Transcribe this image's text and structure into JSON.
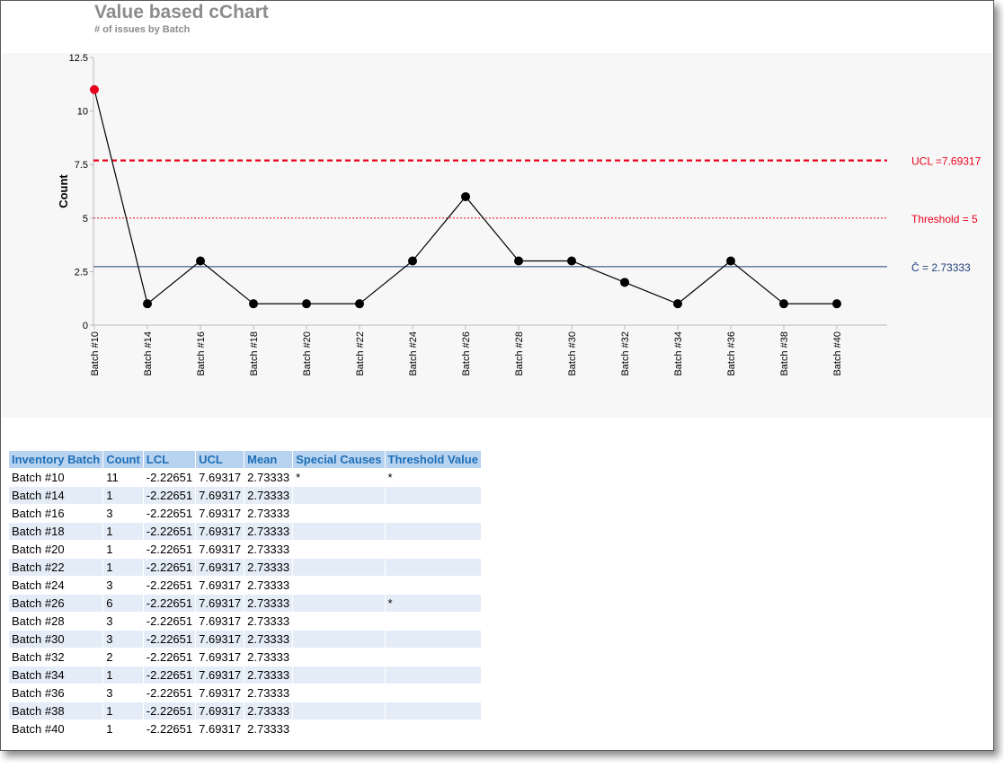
{
  "header": {
    "title": "Value based cChart",
    "subtitle": "# of issues by Batch"
  },
  "chart_data": {
    "type": "line",
    "ylabel": "Count",
    "ylim": [
      0,
      12.5
    ],
    "yticks": [
      "0",
      "2.5",
      "5",
      "7.5",
      "10",
      "12.5"
    ],
    "yticks_values": [
      0,
      2.5,
      5,
      7.5,
      10,
      12.5
    ],
    "categories": [
      "Batch #10",
      "Batch #14",
      "Batch #16",
      "Batch #18",
      "Batch #20",
      "Batch #22",
      "Batch #24",
      "Batch #26",
      "Batch #28",
      "Batch #30",
      "Batch #32",
      "Batch #34",
      "Batch #36",
      "Batch #38",
      "Batch #40"
    ],
    "values": [
      11,
      1,
      3,
      1,
      1,
      1,
      3,
      6,
      3,
      3,
      2,
      1,
      3,
      1,
      1
    ],
    "highlight_index": 0,
    "grid": false,
    "reference_lines": [
      {
        "label": "UCL =7.69317",
        "value": 7.69317,
        "color": "#e8001c",
        "style": "dashed-heavy"
      },
      {
        "label": "Threshold = 5",
        "value": 5,
        "color": "#e8001c",
        "style": "dotted"
      },
      {
        "label": "C̄ = 2.73333",
        "value": 2.73333,
        "color": "#1f3f7a",
        "style": "solid"
      }
    ],
    "colors": {
      "line": "#000000",
      "marker": "#000000",
      "highlight": "#e8001c"
    }
  },
  "table": {
    "headers": [
      "Inventory Batch",
      "Count",
      "LCL",
      "UCL",
      "Mean",
      "Special Causes",
      "Threshold Value"
    ],
    "rows": [
      [
        "Batch #10",
        "11",
        "-2.22651",
        "7.69317",
        "2.73333",
        "*",
        "*"
      ],
      [
        "Batch #14",
        "1",
        "-2.22651",
        "7.69317",
        "2.73333",
        "",
        ""
      ],
      [
        "Batch #16",
        "3",
        "-2.22651",
        "7.69317",
        "2.73333",
        "",
        ""
      ],
      [
        "Batch #18",
        "1",
        "-2.22651",
        "7.69317",
        "2.73333",
        "",
        ""
      ],
      [
        "Batch #20",
        "1",
        "-2.22651",
        "7.69317",
        "2.73333",
        "",
        ""
      ],
      [
        "Batch #22",
        "1",
        "-2.22651",
        "7.69317",
        "2.73333",
        "",
        ""
      ],
      [
        "Batch #24",
        "3",
        "-2.22651",
        "7.69317",
        "2.73333",
        "",
        ""
      ],
      [
        "Batch #26",
        "6",
        "-2.22651",
        "7.69317",
        "2.73333",
        "",
        "*"
      ],
      [
        "Batch #28",
        "3",
        "-2.22651",
        "7.69317",
        "2.73333",
        "",
        ""
      ],
      [
        "Batch #30",
        "3",
        "-2.22651",
        "7.69317",
        "2.73333",
        "",
        ""
      ],
      [
        "Batch #32",
        "2",
        "-2.22651",
        "7.69317",
        "2.73333",
        "",
        ""
      ],
      [
        "Batch #34",
        "1",
        "-2.22651",
        "7.69317",
        "2.73333",
        "",
        ""
      ],
      [
        "Batch #36",
        "3",
        "-2.22651",
        "7.69317",
        "2.73333",
        "",
        ""
      ],
      [
        "Batch #38",
        "1",
        "-2.22651",
        "7.69317",
        "2.73333",
        "",
        ""
      ],
      [
        "Batch #40",
        "1",
        "-2.22651",
        "7.69317",
        "2.73333",
        "",
        ""
      ]
    ]
  }
}
